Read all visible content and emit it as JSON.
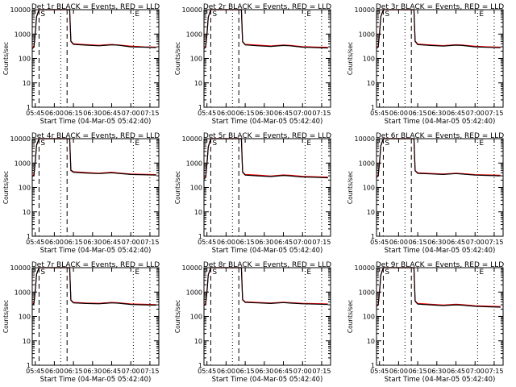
{
  "chart_data": [
    {
      "type": "line",
      "title": "Det  1r BLACK = Events, RED = LLD",
      "xlabel": "Start Time (04-Mar-05 05:42:40)",
      "ylabel": "Counts/sec",
      "xlim": [
        "05:42:40",
        "07:22:00"
      ],
      "ylim": [
        1,
        10000
      ],
      "yscale": "log",
      "x_ticks": [
        "05:45",
        "06:00",
        "06:15",
        "06:30",
        "06:45",
        "07:00",
        "07:15"
      ],
      "y_ticks": [
        "1",
        "10",
        "100",
        "1000",
        "10000"
      ],
      "marker_labels": [
        "S",
        "E"
      ],
      "dashed_lines": [
        "05:48",
        "06:10"
      ],
      "dotted_lines": [
        "06:05",
        "07:02",
        "07:15"
      ],
      "series": [
        {
          "color": "#000000",
          "x": [
            "05:42:40",
            "05:44",
            "05:45",
            "05:46",
            "05:48",
            "06:12",
            "06:13",
            "06:15",
            "06:25",
            "06:35",
            "06:45",
            "06:50",
            "07:00",
            "07:10",
            "07:20"
          ],
          "values": [
            250,
            300,
            1000,
            5000,
            10000,
            10000,
            500,
            380,
            350,
            330,
            360,
            350,
            300,
            290,
            280
          ]
        },
        {
          "color": "#ff0000",
          "x": [
            "05:42:40",
            "05:44",
            "05:45",
            "05:46",
            "05:48",
            "06:12",
            "06:13",
            "06:15",
            "06:25",
            "06:35",
            "06:45",
            "06:50",
            "07:00",
            "07:10",
            "07:20"
          ],
          "values": [
            280,
            320,
            1100,
            5200,
            10000,
            10000,
            520,
            400,
            370,
            345,
            375,
            360,
            320,
            300,
            290
          ]
        }
      ]
    },
    {
      "type": "line",
      "title": "Det  2r BLACK = Events, RED = LLD",
      "xlabel": "Start Time (04-Mar-05 05:42:40)",
      "ylabel": "Counts/sec",
      "xlim": [
        "05:42:40",
        "07:22:00"
      ],
      "ylim": [
        1,
        10000
      ],
      "yscale": "log",
      "x_ticks": [
        "05:45",
        "06:00",
        "06:15",
        "06:30",
        "06:45",
        "07:00",
        "07:15"
      ],
      "y_ticks": [
        "1",
        "10",
        "100",
        "1000",
        "10000"
      ],
      "marker_labels": [
        "S",
        "E"
      ],
      "dashed_lines": [
        "05:48",
        "06:10"
      ],
      "dotted_lines": [
        "06:05",
        "07:02",
        "07:15"
      ],
      "series": [
        {
          "color": "#000000",
          "x": [
            "05:42:40",
            "05:44",
            "05:45",
            "05:46",
            "05:48",
            "06:12",
            "06:13",
            "06:15",
            "06:25",
            "06:35",
            "06:45",
            "06:50",
            "07:00",
            "07:10",
            "07:20"
          ],
          "values": [
            250,
            290,
            950,
            4800,
            10000,
            10000,
            480,
            360,
            330,
            310,
            340,
            330,
            290,
            280,
            270
          ]
        },
        {
          "color": "#ff0000",
          "x": [
            "05:42:40",
            "05:44",
            "05:45",
            "05:46",
            "05:48",
            "06:12",
            "06:13",
            "06:15",
            "06:25",
            "06:35",
            "06:45",
            "06:50",
            "07:00",
            "07:10",
            "07:20"
          ],
          "values": [
            270,
            310,
            1050,
            5000,
            10000,
            10000,
            500,
            380,
            350,
            325,
            355,
            345,
            305,
            295,
            285
          ]
        }
      ]
    },
    {
      "type": "line",
      "title": "Det  3r BLACK = Events, RED = LLD",
      "xlabel": "Start Time (04-Mar-05 05:42:40)",
      "ylabel": "Counts/sec",
      "xlim": [
        "05:42:40",
        "07:22:00"
      ],
      "ylim": [
        1,
        10000
      ],
      "yscale": "log",
      "x_ticks": [
        "05:45",
        "06:00",
        "06:15",
        "06:30",
        "06:45",
        "07:00",
        "07:15"
      ],
      "y_ticks": [
        "1",
        "10",
        "100",
        "1000",
        "10000"
      ],
      "marker_labels": [
        "S",
        "E"
      ],
      "dashed_lines": [
        "05:48",
        "06:10"
      ],
      "dotted_lines": [
        "06:05",
        "07:02",
        "07:15"
      ],
      "series": [
        {
          "color": "#000000",
          "x": [
            "05:42:40",
            "05:44",
            "05:45",
            "05:46",
            "05:48",
            "06:12",
            "06:13",
            "06:15",
            "06:25",
            "06:35",
            "06:45",
            "06:50",
            "07:00",
            "07:10",
            "07:20"
          ],
          "values": [
            260,
            300,
            1000,
            5000,
            10000,
            10000,
            500,
            370,
            340,
            320,
            350,
            340,
            300,
            285,
            275
          ]
        },
        {
          "color": "#ff0000",
          "x": [
            "05:42:40",
            "05:44",
            "05:45",
            "05:46",
            "05:48",
            "06:12",
            "06:13",
            "06:15",
            "06:25",
            "06:35",
            "06:45",
            "06:50",
            "07:00",
            "07:10",
            "07:20"
          ],
          "values": [
            280,
            320,
            1100,
            5200,
            10000,
            10000,
            520,
            390,
            360,
            335,
            365,
            355,
            315,
            300,
            290
          ]
        }
      ]
    },
    {
      "type": "line",
      "title": "Det  4r BLACK = Events, RED = LLD",
      "xlabel": "Start Time (04-Mar-05 05:42:40)",
      "ylabel": "Counts/sec",
      "xlim": [
        "05:42:40",
        "07:22:00"
      ],
      "ylim": [
        1,
        10000
      ],
      "yscale": "log",
      "x_ticks": [
        "05:45",
        "06:00",
        "06:15",
        "06:30",
        "06:45",
        "07:00",
        "07:15"
      ],
      "y_ticks": [
        "1",
        "10",
        "100",
        "1000",
        "10000"
      ],
      "marker_labels": [
        "S",
        "E"
      ],
      "dashed_lines": [
        "05:48",
        "06:10"
      ],
      "dotted_lines": [
        "06:05",
        "07:02",
        "07:15"
      ],
      "series": [
        {
          "color": "#000000",
          "x": [
            "05:42:40",
            "05:44",
            "05:45",
            "05:46",
            "05:48",
            "06:12",
            "06:13",
            "06:15",
            "06:25",
            "06:35",
            "06:45",
            "06:50",
            "07:00",
            "07:10",
            "07:20"
          ],
          "values": [
            280,
            320,
            1100,
            5200,
            10000,
            10000,
            500,
            420,
            390,
            370,
            400,
            380,
            340,
            330,
            320
          ]
        },
        {
          "color": "#ff0000",
          "x": [
            "05:42:40",
            "05:44",
            "05:45",
            "05:46",
            "05:48",
            "06:12",
            "06:13",
            "06:15",
            "06:25",
            "06:35",
            "06:45",
            "06:50",
            "07:00",
            "07:10",
            "07:20"
          ],
          "values": [
            300,
            340,
            1150,
            5400,
            10000,
            10000,
            520,
            440,
            410,
            385,
            420,
            395,
            355,
            345,
            335
          ]
        }
      ]
    },
    {
      "type": "line",
      "title": "Det  5r BLACK = Events, RED = LLD",
      "xlabel": "Start Time (04-Mar-05 05:42:40)",
      "ylabel": "Counts/sec",
      "xlim": [
        "05:42:40",
        "07:22:00"
      ],
      "ylim": [
        1,
        10000
      ],
      "yscale": "log",
      "x_ticks": [
        "05:45",
        "06:00",
        "06:15",
        "06:30",
        "06:45",
        "07:00",
        "07:15"
      ],
      "y_ticks": [
        "1",
        "10",
        "100",
        "1000",
        "10000"
      ],
      "marker_labels": [
        "S",
        "E"
      ],
      "dashed_lines": [
        "05:48",
        "06:10"
      ],
      "dotted_lines": [
        "06:05",
        "07:02",
        "07:15"
      ],
      "series": [
        {
          "color": "#000000",
          "x": [
            "05:42:40",
            "05:44",
            "05:45",
            "05:46",
            "05:48",
            "06:12",
            "06:13",
            "06:15",
            "06:25",
            "06:35",
            "06:45",
            "06:50",
            "07:00",
            "07:10",
            "07:20"
          ],
          "values": [
            220,
            260,
            900,
            4500,
            10000,
            10000,
            420,
            320,
            300,
            280,
            310,
            300,
            270,
            260,
            250
          ]
        },
        {
          "color": "#ff0000",
          "x": [
            "05:42:40",
            "05:44",
            "05:45",
            "05:46",
            "05:48",
            "06:12",
            "06:13",
            "06:15",
            "06:25",
            "06:35",
            "06:45",
            "06:50",
            "07:00",
            "07:10",
            "07:20"
          ],
          "values": [
            240,
            280,
            950,
            4700,
            10000,
            10000,
            440,
            340,
            320,
            295,
            325,
            315,
            285,
            275,
            265
          ]
        }
      ]
    },
    {
      "type": "line",
      "title": "Det  6r BLACK = Events, RED = LLD",
      "xlabel": "Start Time (04-Mar-05 05:42:40)",
      "ylabel": "Counts/sec",
      "xlim": [
        "05:42:40",
        "07:22:00"
      ],
      "ylim": [
        1,
        10000
      ],
      "yscale": "log",
      "x_ticks": [
        "05:45",
        "06:00",
        "06:15",
        "06:30",
        "06:45",
        "07:00",
        "07:15"
      ],
      "y_ticks": [
        "1",
        "10",
        "100",
        "1000",
        "10000"
      ],
      "marker_labels": [
        "S",
        "E"
      ],
      "dashed_lines": [
        "05:48",
        "06:10"
      ],
      "dotted_lines": [
        "06:05",
        "07:02",
        "07:15"
      ],
      "series": [
        {
          "color": "#000000",
          "x": [
            "05:42:40",
            "05:44",
            "05:45",
            "05:46",
            "05:48",
            "06:12",
            "06:13",
            "06:15",
            "06:25",
            "06:35",
            "06:45",
            "06:50",
            "07:00",
            "07:10",
            "07:20"
          ],
          "values": [
            260,
            300,
            1000,
            5000,
            10000,
            10000,
            480,
            380,
            360,
            340,
            370,
            355,
            320,
            310,
            300
          ]
        },
        {
          "color": "#ff0000",
          "x": [
            "05:42:40",
            "05:44",
            "05:45",
            "05:46",
            "05:48",
            "06:12",
            "06:13",
            "06:15",
            "06:25",
            "06:35",
            "06:45",
            "06:50",
            "07:00",
            "07:10",
            "07:20"
          ],
          "values": [
            280,
            320,
            1050,
            5200,
            10000,
            10000,
            500,
            400,
            375,
            355,
            385,
            370,
            335,
            325,
            315
          ]
        }
      ]
    },
    {
      "type": "line",
      "title": "Det  7r BLACK = Events, RED = LLD",
      "xlabel": "Start Time (04-Mar-05 05:42:40)",
      "ylabel": "Counts/sec",
      "xlim": [
        "05:42:40",
        "07:22:00"
      ],
      "ylim": [
        1,
        10000
      ],
      "yscale": "log",
      "x_ticks": [
        "05:45",
        "06:00",
        "06:15",
        "06:30",
        "06:45",
        "07:00",
        "07:15"
      ],
      "y_ticks": [
        "1",
        "10",
        "100",
        "1000",
        "10000"
      ],
      "marker_labels": [
        "S",
        "E"
      ],
      "dashed_lines": [
        "05:48",
        "06:10"
      ],
      "dotted_lines": [
        "06:05",
        "07:02",
        "07:15"
      ],
      "series": [
        {
          "color": "#000000",
          "x": [
            "05:42:40",
            "05:44",
            "05:45",
            "05:46",
            "05:48",
            "06:12",
            "06:13",
            "06:15",
            "06:25",
            "06:35",
            "06:45",
            "06:50",
            "07:00",
            "07:10",
            "07:20"
          ],
          "values": [
            300,
            340,
            1100,
            5200,
            10000,
            10000,
            460,
            360,
            340,
            330,
            360,
            350,
            310,
            300,
            290
          ]
        },
        {
          "color": "#ff0000",
          "x": [
            "05:42:40",
            "05:44",
            "05:45",
            "05:46",
            "05:48",
            "06:12",
            "06:13",
            "06:15",
            "06:25",
            "06:35",
            "06:45",
            "06:50",
            "07:00",
            "07:10",
            "07:20"
          ],
          "values": [
            320,
            360,
            1150,
            5400,
            10000,
            10000,
            480,
            380,
            355,
            345,
            375,
            365,
            325,
            315,
            305
          ]
        }
      ]
    },
    {
      "type": "line",
      "title": "Det  8r BLACK = Events, RED = LLD",
      "xlabel": "Start Time (04-Mar-05 05:42:40)",
      "ylabel": "Counts/sec",
      "xlim": [
        "05:42:40",
        "07:22:00"
      ],
      "ylim": [
        1,
        10000
      ],
      "yscale": "log",
      "x_ticks": [
        "05:45",
        "06:00",
        "06:15",
        "06:30",
        "06:45",
        "07:00",
        "07:15"
      ],
      "y_ticks": [
        "1",
        "10",
        "100",
        "1000",
        "10000"
      ],
      "marker_labels": [
        "S",
        "E"
      ],
      "dashed_lines": [
        "05:48",
        "06:10"
      ],
      "dotted_lines": [
        "06:05",
        "07:02",
        "07:15"
      ],
      "series": [
        {
          "color": "#000000",
          "x": [
            "05:42:40",
            "05:44",
            "05:45",
            "05:46",
            "05:48",
            "06:12",
            "06:13",
            "06:15",
            "06:25",
            "06:35",
            "06:45",
            "06:50",
            "07:00",
            "07:10",
            "07:20"
          ],
          "values": [
            280,
            320,
            1000,
            5000,
            10000,
            10000,
            480,
            380,
            360,
            340,
            370,
            355,
            330,
            320,
            310
          ]
        },
        {
          "color": "#ff0000",
          "x": [
            "05:42:40",
            "05:44",
            "05:45",
            "05:46",
            "05:48",
            "06:12",
            "06:13",
            "06:15",
            "06:25",
            "06:35",
            "06:45",
            "06:50",
            "07:00",
            "07:10",
            "07:20"
          ],
          "values": [
            300,
            340,
            1050,
            5200,
            10000,
            10000,
            500,
            400,
            375,
            355,
            385,
            370,
            345,
            335,
            325
          ]
        }
      ]
    },
    {
      "type": "line",
      "title": "Det  9r BLACK = Events, RED = LLD",
      "xlabel": "Start Time (04-Mar-05 05:42:40)",
      "ylabel": "Counts/sec",
      "xlim": [
        "05:42:40",
        "07:22:00"
      ],
      "ylim": [
        1,
        10000
      ],
      "yscale": "log",
      "x_ticks": [
        "05:45",
        "06:00",
        "06:15",
        "06:30",
        "06:45",
        "07:00",
        "07:15"
      ],
      "y_ticks": [
        "1",
        "10",
        "100",
        "1000",
        "10000"
      ],
      "marker_labels": [
        "S",
        "E"
      ],
      "dashed_lines": [
        "05:48",
        "06:10"
      ],
      "dotted_lines": [
        "06:05",
        "07:02",
        "07:15"
      ],
      "series": [
        {
          "color": "#000000",
          "x": [
            "05:42:40",
            "05:44",
            "05:45",
            "05:46",
            "05:48",
            "06:12",
            "06:13",
            "06:15",
            "06:25",
            "06:35",
            "06:45",
            "06:50",
            "07:00",
            "07:10",
            "07:20"
          ],
          "values": [
            260,
            300,
            950,
            4800,
            10000,
            10000,
            420,
            320,
            300,
            280,
            300,
            290,
            260,
            250,
            240
          ]
        },
        {
          "color": "#ff0000",
          "x": [
            "05:42:40",
            "05:44",
            "05:45",
            "05:46",
            "05:48",
            "06:12",
            "06:13",
            "06:15",
            "06:25",
            "06:35",
            "06:45",
            "06:50",
            "07:00",
            "07:10",
            "07:20"
          ],
          "values": [
            280,
            320,
            1000,
            5000,
            10000,
            10000,
            440,
            340,
            315,
            295,
            315,
            305,
            275,
            265,
            255
          ]
        }
      ]
    }
  ]
}
